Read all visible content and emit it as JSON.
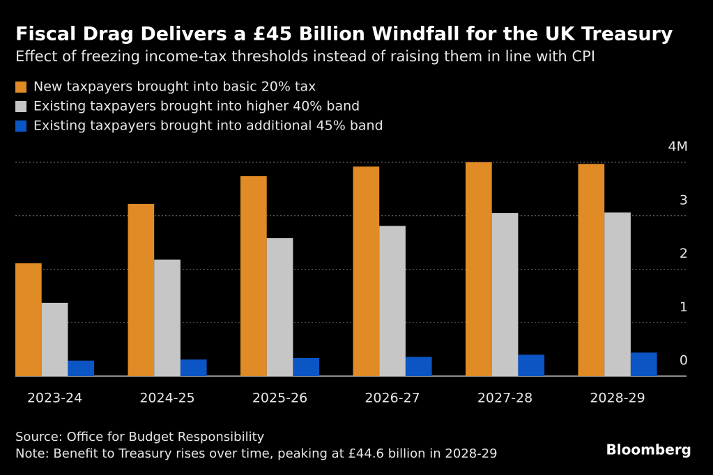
{
  "chart_data": {
    "type": "bar",
    "title": "Fiscal Drag Delivers a £45 Billion Windfall for the UK Treasury",
    "subtitle": "Effect of freezing income-tax thresholds instead of raising them in line with CPI",
    "categories": [
      "2023-24",
      "2024-25",
      "2025-26",
      "2026-27",
      "2027-28",
      "2028-29"
    ],
    "series": [
      {
        "name": "New taxpayers brought into basic 20% tax",
        "color": "#e08b25",
        "values": [
          2.11,
          3.22,
          3.74,
          3.92,
          4.0,
          3.97
        ]
      },
      {
        "name": "Existing taxpayers brought into higher 40% band",
        "color": "#c6c6c6",
        "values": [
          1.37,
          2.18,
          2.58,
          2.81,
          3.05,
          3.06
        ]
      },
      {
        "name": "Existing taxpayers brought into additional 45% band",
        "color": "#0b55c4",
        "values": [
          0.29,
          0.31,
          0.34,
          0.36,
          0.4,
          0.44
        ]
      }
    ],
    "ylim": [
      0,
      4
    ],
    "yticks": [
      0,
      1,
      2,
      3,
      {
        "value": 4,
        "label": "4M"
      }
    ],
    "grid": true,
    "source": "Source: Office for Budget Responsibility",
    "note": "Note: Benefit to Treasury rises over time, peaking at £44.6 billion in 2028-29",
    "brand": "Bloomberg"
  }
}
